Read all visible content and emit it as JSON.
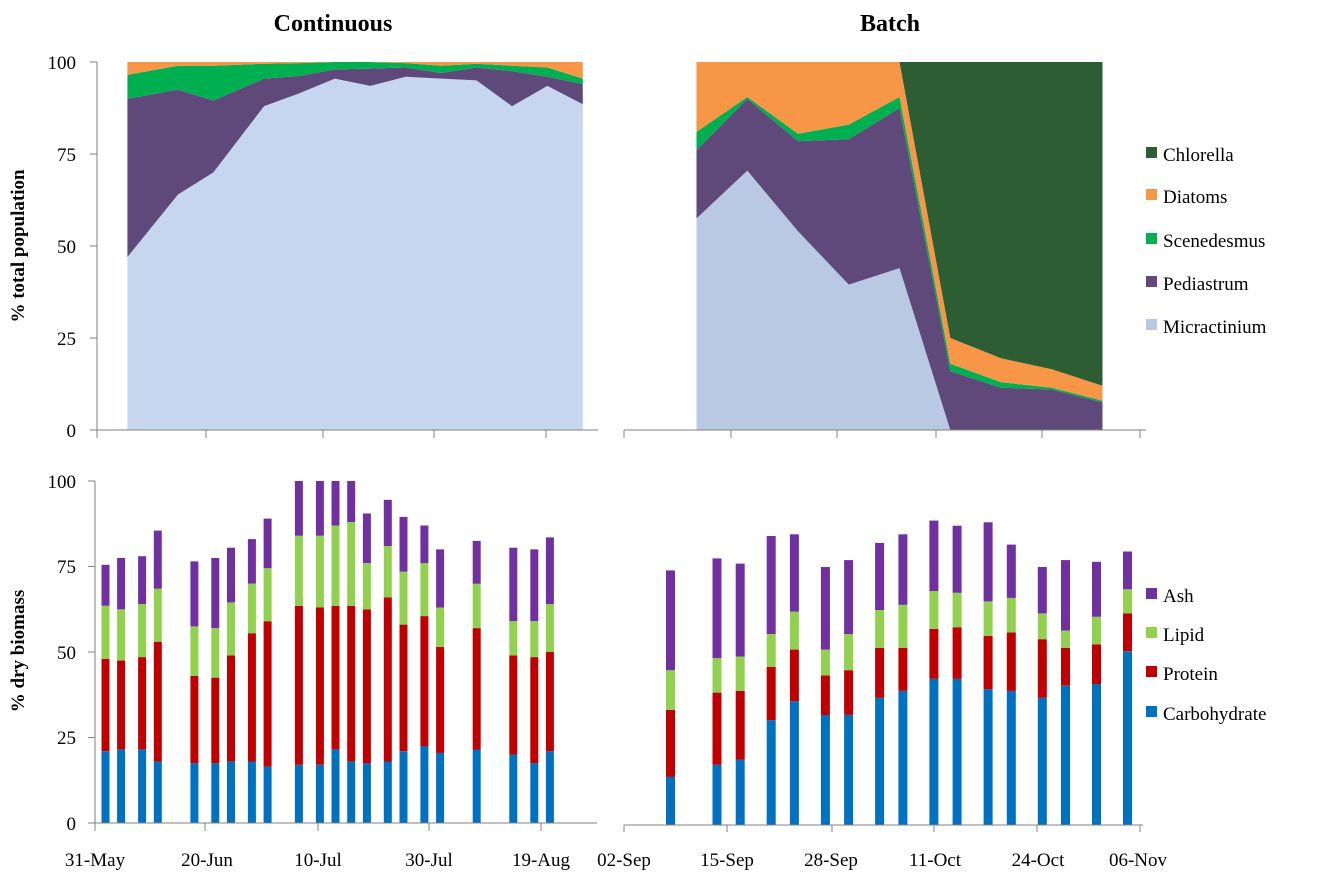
{
  "chart_data": [
    {
      "type": "area",
      "stacked": true,
      "title": "Continuous",
      "xlabel": "",
      "ylabel": "% total population",
      "ylim": [
        0,
        100
      ],
      "yticks": [
        "0",
        "25",
        "50",
        "75",
        "100"
      ],
      "xtick_labels": [],
      "grid": false,
      "x": [
        "02-Jun",
        "12-Jun",
        "19-Jun",
        "29-Jun",
        "06-Jul",
        "13-Jul",
        "20-Jul",
        "27-Jul",
        "03-Aug",
        "10-Aug",
        "17-Aug",
        "24-Aug",
        "31-Aug"
      ],
      "series": [
        {
          "name": "Micractinium",
          "color": "#c5d6ee",
          "values": [
            47,
            64,
            70,
            88,
            91.5,
            95.5,
            93.5,
            96,
            95.5,
            95,
            88,
            93.5,
            88.5
          ]
        },
        {
          "name": "Pediastrum",
          "color": "#5f497a",
          "values": [
            43,
            28.5,
            19.5,
            7.5,
            4.7,
            2.5,
            4.7,
            2.5,
            1.5,
            3.5,
            9.5,
            2.5,
            5.5
          ]
        },
        {
          "name": "Scenedesmus",
          "color": "#00b050",
          "values": [
            6.5,
            6.5,
            9.5,
            4,
            3.5,
            2,
            1.8,
            1.2,
            2,
            1,
            1.5,
            2.5,
            1.5
          ]
        },
        {
          "name": "Diatoms",
          "color": "#f79646",
          "values": [
            3.5,
            1,
            1,
            0.5,
            0.3,
            0,
            0,
            0.3,
            1,
            0.5,
            1,
            1.5,
            4.5
          ]
        }
      ]
    },
    {
      "type": "area",
      "stacked": true,
      "title": "Batch",
      "xlabel": "",
      "ylabel": "",
      "ylim": [
        0,
        100
      ],
      "xtick_labels": [],
      "grid": false,
      "x": [
        "07-Sep",
        "14-Sep",
        "21-Sep",
        "28-Sep",
        "05-Oct",
        "12-Oct",
        "19-Oct",
        "26-Oct",
        "02-Nov"
      ],
      "series": [
        {
          "name": "Micractinium",
          "color": "#b9c9e3",
          "values": [
            57.5,
            70.5,
            54,
            39.5,
            44,
            0,
            0,
            0,
            0
          ]
        },
        {
          "name": "Pediastrum",
          "color": "#5f497a",
          "values": [
            18.5,
            19.5,
            24.5,
            39.5,
            43.5,
            16,
            11.5,
            11,
            7.5
          ]
        },
        {
          "name": "Scenedesmus",
          "color": "#00b050",
          "values": [
            5,
            0.5,
            2,
            4,
            3,
            2,
            1.5,
            0.5,
            0.5
          ]
        },
        {
          "name": "Diatoms",
          "color": "#f79646",
          "values": [
            19,
            9.5,
            19.5,
            17,
            9.5,
            7,
            6.5,
            5,
            4
          ]
        },
        {
          "name": "Chlorella",
          "color": "#2d5e33",
          "values": [
            0,
            0,
            0,
            0,
            0,
            75,
            80.5,
            83.5,
            88
          ]
        }
      ],
      "legend": "right",
      "legend_entries": [
        "Chlorella",
        "Diatoms",
        "Scenedesmus",
        "Pediastrum",
        "Micractinium"
      ]
    },
    {
      "type": "bar",
      "stacked": true,
      "title": "",
      "xlabel": "",
      "ylabel": "% dry biomass",
      "ylim": [
        0,
        100
      ],
      "yticks": [
        "0",
        "25",
        "50",
        "75",
        "100"
      ],
      "xtick_labels": [
        "31-May",
        "20-Jun",
        "10-Jul",
        "30-Jul",
        "19-Aug"
      ],
      "grid": false,
      "x": [
        "02-Jun",
        "05-Jun",
        "09-Jun",
        "12-Jun",
        "19-Jun",
        "23-Jun",
        "26-Jun",
        "30-Jun",
        "03-Jul",
        "09-Jul",
        "13-Jul",
        "16-Jul",
        "19-Jul",
        "22-Jul",
        "26-Jul",
        "29-Jul",
        "02-Aug",
        "05-Aug",
        "12-Aug",
        "19-Aug",
        "23-Aug",
        "26-Aug"
      ],
      "series": [
        {
          "name": "Carbohydrate",
          "color": "#0070c0",
          "values": [
            21,
            21.5,
            21.5,
            18,
            17.5,
            17.5,
            18,
            18,
            16.5,
            17,
            17,
            21.5,
            18,
            17.5,
            18,
            21,
            22.5,
            20.5,
            21.5,
            20,
            17.5,
            21
          ]
        },
        {
          "name": "Protein",
          "color": "#c00000",
          "values": [
            27,
            26,
            27,
            35,
            25.5,
            25,
            31,
            37.5,
            42.5,
            46.5,
            46,
            42,
            45.5,
            45,
            48,
            37,
            38,
            31,
            35.5,
            29,
            31,
            29
          ]
        },
        {
          "name": "Lipid",
          "color": "#92d050",
          "values": [
            15.5,
            15,
            15.5,
            15.5,
            14.5,
            14.5,
            15.5,
            14.5,
            15.5,
            20.5,
            21,
            23.5,
            24.5,
            13.5,
            15,
            15.5,
            15.5,
            11.5,
            13,
            10,
            10.5,
            14
          ]
        },
        {
          "name": "Ash",
          "color": "#7030a0",
          "values": [
            12,
            15,
            14,
            17,
            19,
            20.5,
            16,
            13,
            14.5,
            16,
            16,
            13,
            12,
            14.5,
            13.5,
            16,
            11,
            17,
            12.5,
            21.5,
            21,
            19.5
          ]
        }
      ]
    },
    {
      "type": "bar",
      "stacked": true,
      "title": "",
      "xlabel": "",
      "ylabel": "",
      "ylim": [
        0,
        100
      ],
      "xtick_labels": [
        "02-Sep",
        "15-Sep",
        "28-Sep",
        "11-Oct",
        "24-Oct",
        "06-Nov"
      ],
      "grid": false,
      "x": [
        "08-Sep",
        "14-Sep",
        "17-Sep",
        "21-Sep",
        "24-Sep",
        "28-Sep",
        "01-Oct",
        "05-Oct",
        "08-Oct",
        "12-Oct",
        "15-Oct",
        "19-Oct",
        "22-Oct",
        "26-Oct",
        "29-Oct",
        "02-Nov",
        "06-Nov"
      ],
      "series": [
        {
          "name": "Carbohydrate",
          "color": "#0070c0",
          "values": [
            14,
            17.5,
            19,
            30.5,
            36,
            32,
            32,
            37,
            39,
            42.5,
            42.5,
            39.5,
            39,
            37,
            40.5,
            41,
            50.5
          ]
        },
        {
          "name": "Protein",
          "color": "#c00000",
          "values": [
            19.5,
            21,
            20,
            15.5,
            15,
            11.5,
            13,
            14.5,
            12.5,
            14.5,
            15,
            15.5,
            17,
            17,
            11,
            11.5,
            11
          ]
        },
        {
          "name": "Lipid",
          "color": "#92d050",
          "values": [
            11.5,
            10,
            10,
            9.5,
            11,
            7.5,
            10.5,
            11,
            12.5,
            11,
            10,
            10,
            10,
            7.5,
            5,
            8,
            7
          ]
        },
        {
          "name": "Ash",
          "color": "#7030a0",
          "values": [
            29,
            29,
            27,
            28.5,
            22.5,
            24,
            21.5,
            19.5,
            20.5,
            20.5,
            19.5,
            23,
            15.5,
            13.5,
            20.5,
            16,
            11
          ]
        }
      ],
      "legend": "right",
      "legend_entries": [
        "Ash",
        "Lipid",
        "Protein",
        "Carbohydrate"
      ]
    }
  ]
}
